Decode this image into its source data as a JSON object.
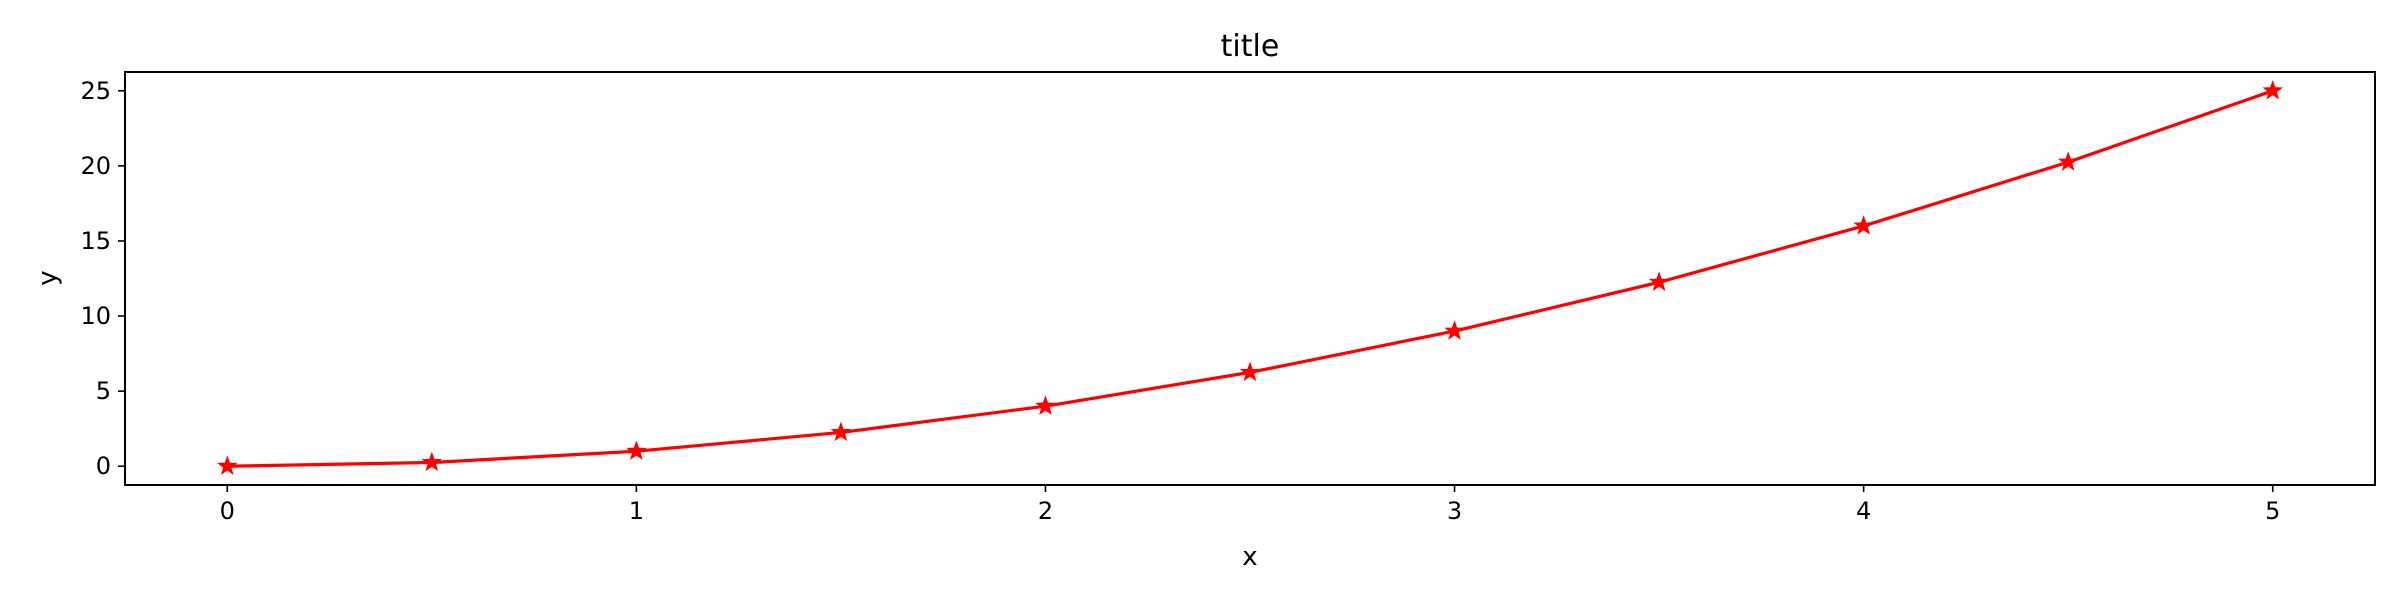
{
  "chart_data": {
    "type": "line",
    "title": "title",
    "xlabel": "x",
    "ylabel": "y",
    "x": [
      0,
      0.5,
      1,
      1.5,
      2,
      2.5,
      3,
      3.5,
      4,
      4.5,
      5
    ],
    "series": [
      {
        "values": [
          0,
          0.25,
          1,
          2.25,
          4,
          6.25,
          9,
          12.25,
          16,
          20.25,
          25
        ],
        "color": "#ff0000",
        "marker": "star"
      }
    ],
    "xlim": [
      -0.25,
      5.25
    ],
    "ylim": [
      -1.25,
      26.25
    ],
    "xticks": [
      0,
      1,
      2,
      3,
      4,
      5
    ],
    "xtick_labels": [
      "0",
      "1",
      "2",
      "3",
      "4",
      "5"
    ],
    "yticks": [
      0,
      5,
      10,
      15,
      20,
      25
    ],
    "ytick_labels": [
      "0",
      "5",
      "10",
      "15",
      "20",
      "25"
    ],
    "grid": false,
    "legend": "none"
  }
}
